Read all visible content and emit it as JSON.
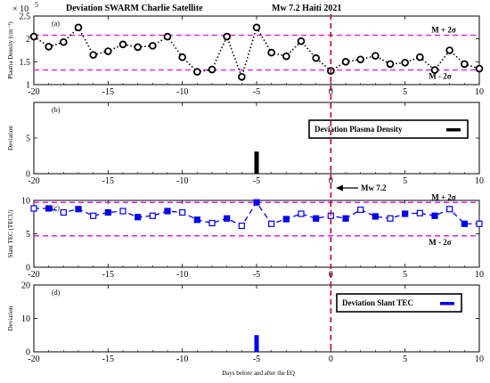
{
  "header": {
    "left": "Deviation  SWARM Charlie Satellite",
    "right": "Mw 7.2 Haiti 2021",
    "exponent": "× 10",
    "exponent_power": "5"
  },
  "xlabel": "Days before and after the EQ",
  "colors": {
    "bound": "#e020e0",
    "eq_line": "#c00030",
    "tec": "#0000ee",
    "density": "#000000"
  },
  "chart_data": [
    {
      "id": "a",
      "type": "line",
      "panel_label": "(a)",
      "ylabel": "Plasma Density (cm⁻³)",
      "xlim": [
        -20,
        10
      ],
      "ylim": [
        1,
        2.5
      ],
      "yticks": [
        1,
        1.5,
        2,
        2.5
      ],
      "ytick_labels": [
        "1",
        "1.5",
        "2",
        "2.5"
      ],
      "xticks": [
        -20,
        -15,
        -10,
        -5,
        0,
        5,
        10
      ],
      "xtick_labels": [
        "-20",
        "-15",
        "-10",
        "-5",
        "0",
        "5",
        "10"
      ],
      "x": [
        -20,
        -19,
        -18,
        -17,
        -16,
        -15,
        -14,
        -13,
        -12,
        -11,
        -10,
        -9,
        -8,
        -7,
        -6,
        -5,
        -4,
        -3,
        -2,
        -1,
        0,
        1,
        2,
        3,
        4,
        5,
        6,
        7,
        8,
        9,
        10
      ],
      "values": [
        2.05,
        1.83,
        1.93,
        2.25,
        1.65,
        1.73,
        1.88,
        1.82,
        1.85,
        2.05,
        1.6,
        1.28,
        1.33,
        2.05,
        1.17,
        2.25,
        1.7,
        1.62,
        1.95,
        1.58,
        1.3,
        1.5,
        1.55,
        1.63,
        1.45,
        1.48,
        1.6,
        1.32,
        1.75,
        1.45,
        1.35
      ],
      "upper_bound": 2.08,
      "lower_bound": 1.32,
      "upper_label": "M + 2σ",
      "lower_label": "M - 2σ"
    },
    {
      "id": "b",
      "type": "bar",
      "panel_label": "(b)",
      "ylabel": "Deviation",
      "xlim": [
        -20,
        10
      ],
      "ylim": [
        0,
        10
      ],
      "yticks": [
        0,
        5
      ],
      "ytick_labels": [
        "0",
        "5"
      ],
      "xticks": [
        -20,
        -15,
        -10,
        -5,
        0,
        5,
        10
      ],
      "xtick_labels": [
        "-20",
        "-15",
        "-10",
        "-5",
        "0",
        "5",
        "10"
      ],
      "bars": [
        {
          "x": -5,
          "value": 3.1
        }
      ],
      "legend": "Deviation Plasma Density",
      "annotation": "Mw 7.2"
    },
    {
      "id": "c",
      "type": "line",
      "panel_label": "(c)",
      "ylabel": "Slant TEC (TECU)",
      "xlim": [
        -20,
        10
      ],
      "ylim": [
        0,
        10
      ],
      "yticks": [
        0,
        5,
        10
      ],
      "ytick_labels": [
        "0",
        "5",
        "10"
      ],
      "xticks": [
        -20,
        -15,
        -10,
        -5,
        0,
        5,
        10
      ],
      "xtick_labels": [
        "-20",
        "-15",
        "-10",
        "-5",
        "0",
        "5",
        "10"
      ],
      "x": [
        -20,
        -19,
        -18,
        -17,
        -16,
        -15,
        -14,
        -13,
        -12,
        -11,
        -10,
        -9,
        -8,
        -7,
        -6,
        -5,
        -4,
        -3,
        -2,
        -1,
        0,
        1,
        2,
        3,
        4,
        5,
        6,
        7,
        8,
        9,
        10
      ],
      "values": [
        8.8,
        8.8,
        8.2,
        8.7,
        7.7,
        8.2,
        8.4,
        7.5,
        7.7,
        8.4,
        8.2,
        7.1,
        6.6,
        7.3,
        6.2,
        9.7,
        6.5,
        7.2,
        8.0,
        7.3,
        7.7,
        7.3,
        8.6,
        7.6,
        7.3,
        8.0,
        8.1,
        7.7,
        8.7,
        6.5,
        6.5
      ],
      "upper_bound": 9.7,
      "lower_bound": 4.7,
      "upper_label": "M + 2σ",
      "lower_label": "M - 2σ"
    },
    {
      "id": "d",
      "type": "bar",
      "panel_label": "(d)",
      "ylabel": "Deviation",
      "xlim": [
        -20,
        10
      ],
      "ylim": [
        0,
        20
      ],
      "yticks": [
        0,
        10,
        20
      ],
      "ytick_labels": [
        "0",
        "10",
        "20"
      ],
      "xticks": [
        -20,
        -15,
        -10,
        -5,
        0,
        5,
        10
      ],
      "xtick_labels": [
        "-20",
        "-15",
        "-10",
        "-5",
        "0",
        "5",
        "10"
      ],
      "bars": [
        {
          "x": -5,
          "value": 5
        }
      ],
      "legend": "Deviation Slant TEC"
    }
  ]
}
